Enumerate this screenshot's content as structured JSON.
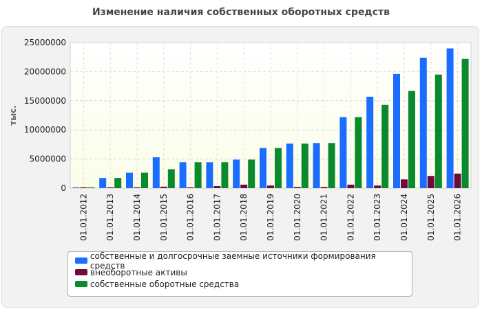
{
  "chart_data": {
    "type": "bar",
    "title": "Изменение наличия собственных оборотных средств",
    "ylabel": "тыс.",
    "xlabel": "",
    "ylim": [
      0,
      25000000
    ],
    "yticks": [
      0,
      5000000,
      10000000,
      15000000,
      20000000,
      25000000
    ],
    "ytick_labels": [
      "0",
      "5000000",
      "10000000",
      "15000000",
      "20000000",
      "25000000"
    ],
    "grid": true,
    "legend_position": "bottom",
    "categories": [
      "01.01.2012",
      "01.01.2013",
      "01.01.2014",
      "01.01.2015",
      "01.01.2016",
      "01.01.2017",
      "01.01.2018",
      "01.01.2019",
      "01.01.2020",
      "01.01.2021",
      "01.01.2022",
      "01.01.2023",
      "01.01.2024",
      "01.01.2025",
      "01.01.2026"
    ],
    "series": [
      {
        "name": "собственные и долгосрочные заемные источники формирования средств",
        "color": "#1a6dff",
        "values": [
          100000,
          1750000,
          2650000,
          5300000,
          4450000,
          4450000,
          4900000,
          6900000,
          7650000,
          7750000,
          12200000,
          15700000,
          19600000,
          22400000,
          24000000
        ]
      },
      {
        "name": "внеоборотные активы",
        "color": "#6e0b3c",
        "values": [
          50000,
          50000,
          50000,
          250000,
          50000,
          350000,
          600000,
          450000,
          200000,
          200000,
          600000,
          450000,
          1500000,
          2100000,
          2500000
        ]
      },
      {
        "name": "собственные оборотные средства",
        "color": "#0a8a2e",
        "values": [
          100000,
          1750000,
          2650000,
          3250000,
          4450000,
          4450000,
          4900000,
          6900000,
          7650000,
          7750000,
          12200000,
          14300000,
          16700000,
          19500000,
          22200000
        ]
      }
    ]
  }
}
